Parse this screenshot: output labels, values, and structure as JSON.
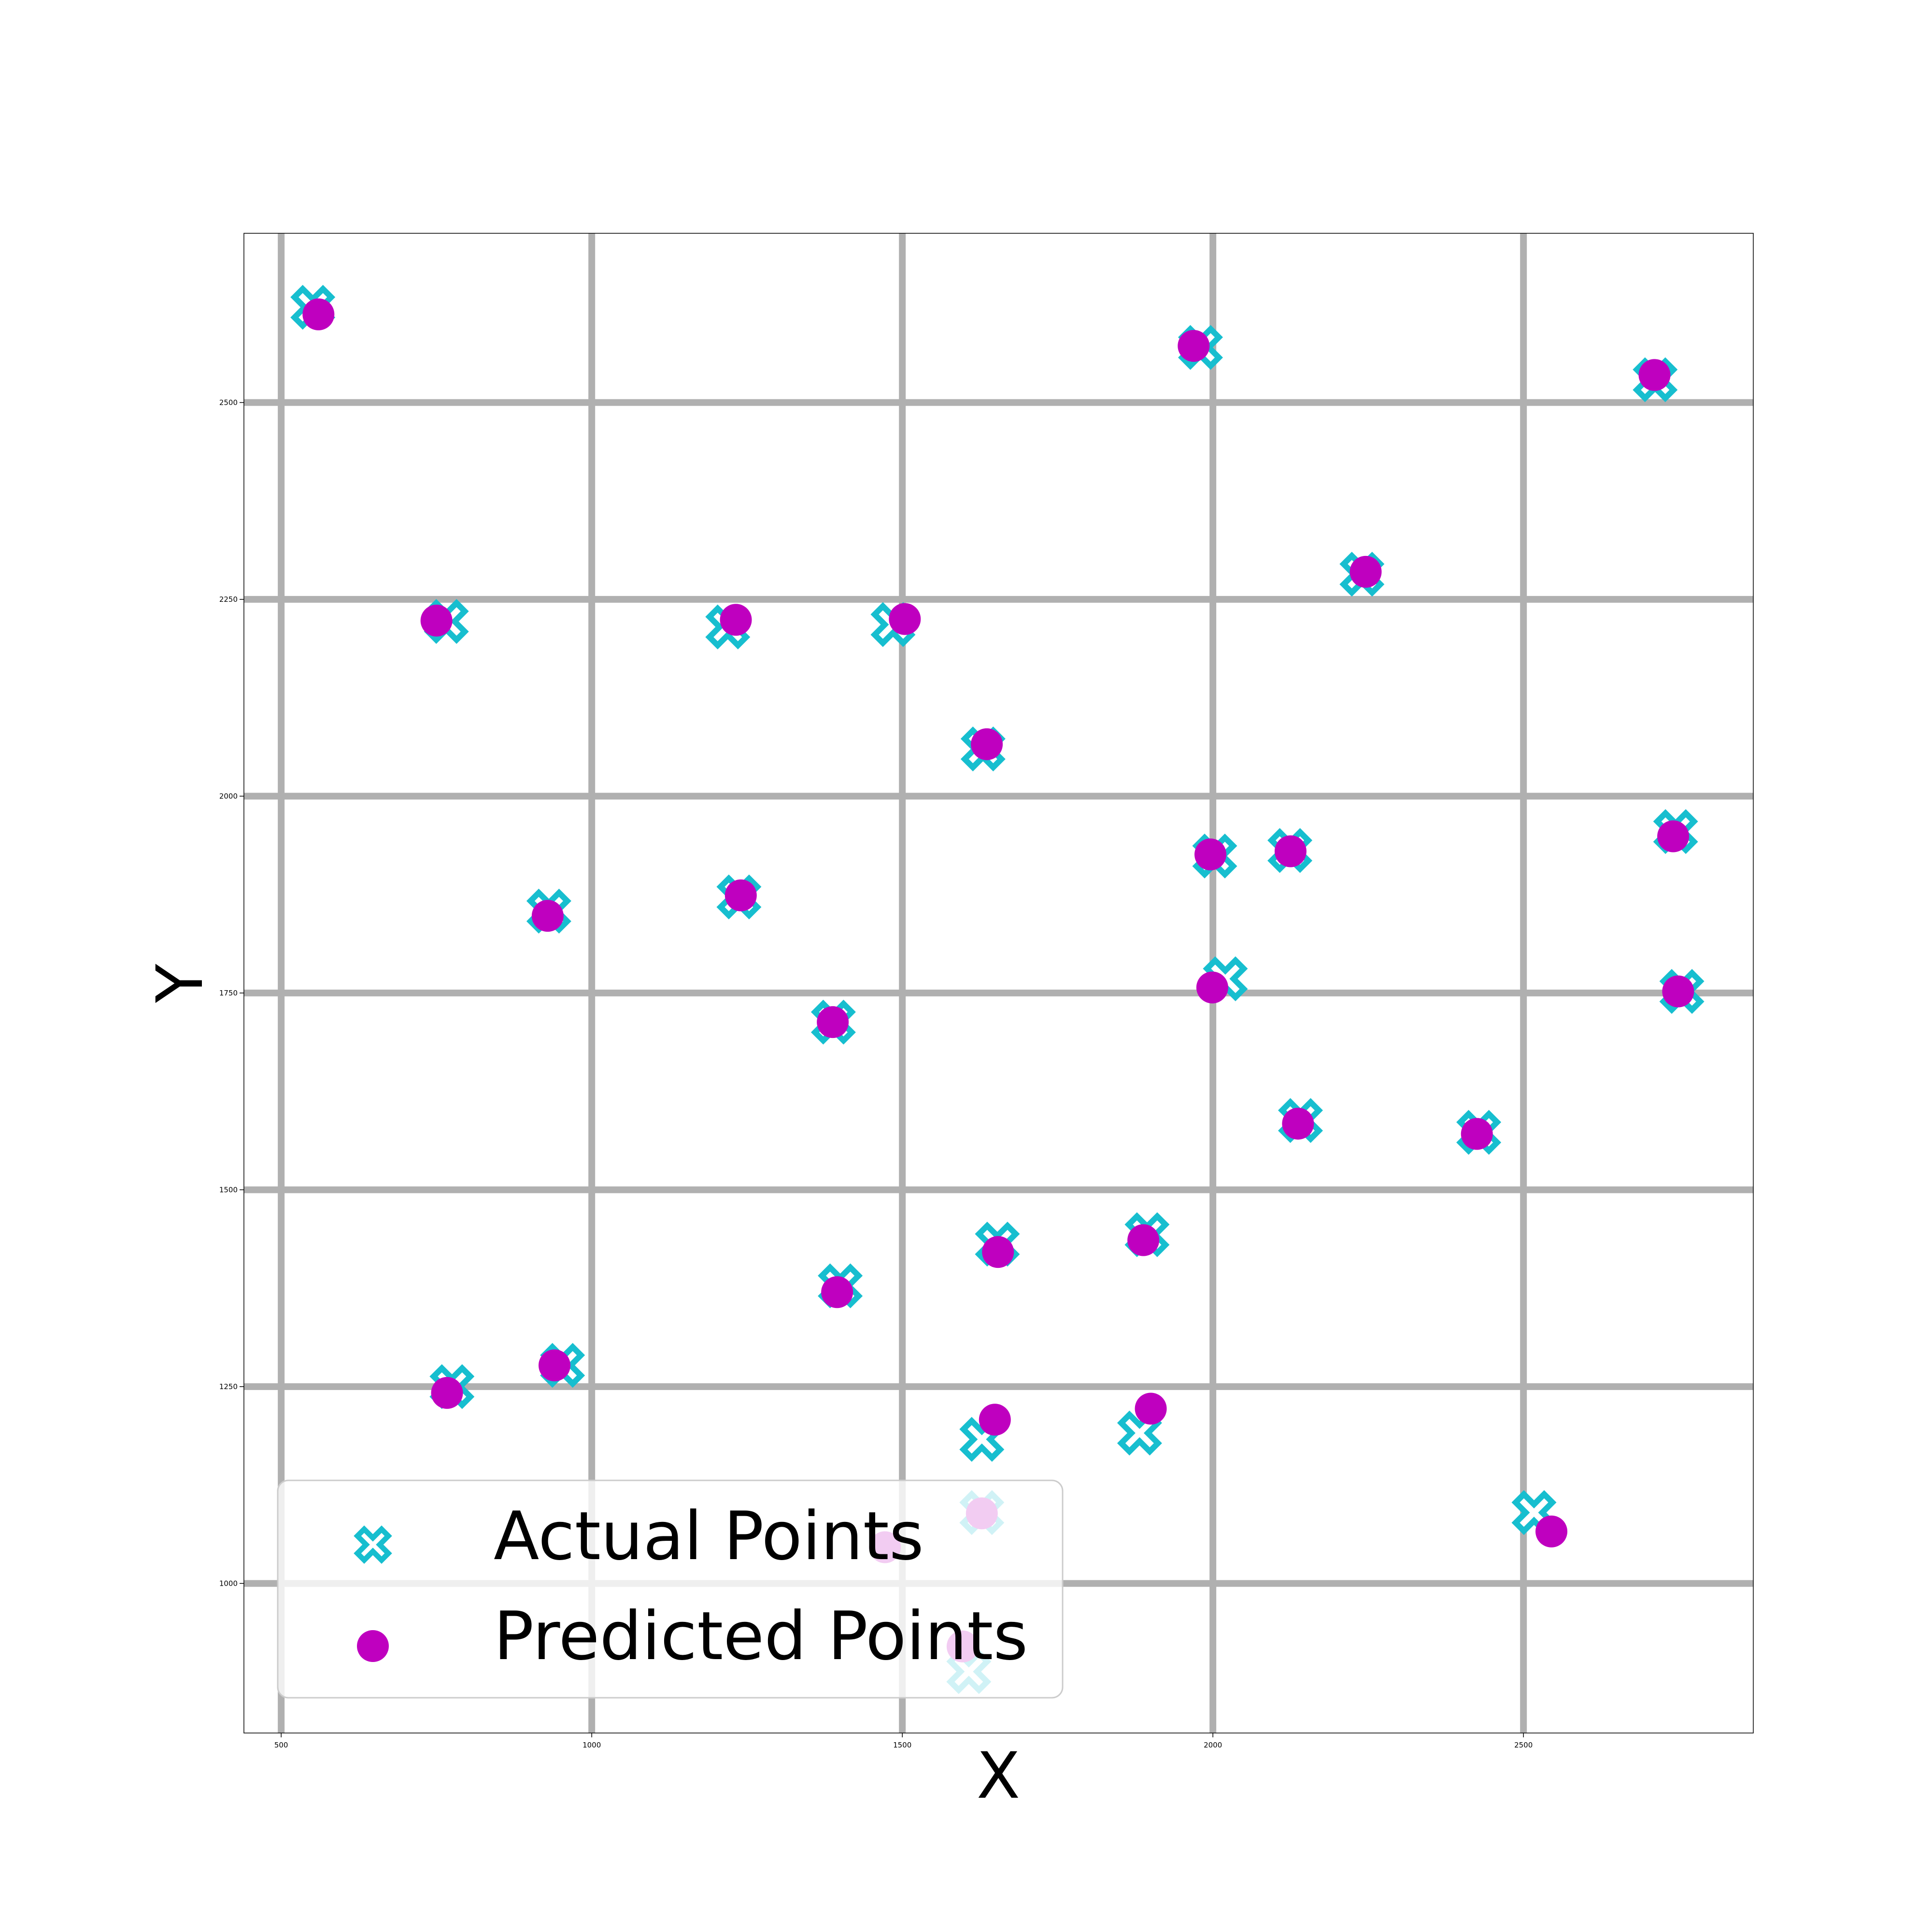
{
  "chart_data": {
    "type": "scatter",
    "title": "",
    "xlabel": "X",
    "ylabel": "Y",
    "xlim": [
      440,
      2870
    ],
    "ylim": [
      810,
      2715
    ],
    "xticks": [
      500,
      1000,
      1500,
      2000,
      2500
    ],
    "yticks": [
      1000,
      1250,
      1500,
      1750,
      2000,
      2250,
      2500
    ],
    "xtick_labels": [
      "500",
      "1000",
      "1500",
      "2000",
      "2500"
    ],
    "ytick_labels": [
      "1000",
      "1250",
      "1500",
      "1750",
      "2000",
      "2250",
      "2500"
    ],
    "grid": true,
    "legend_position": "lower-left",
    "colors": {
      "actual": "#17becf",
      "predicted": "#bf00bf",
      "grid": "#b0b0b0"
    },
    "series": [
      {
        "name": "Actual Points",
        "marker": "x-filled",
        "points": [
          [
            551,
            2621
          ],
          [
            766,
            2222
          ],
          [
            1219,
            2215
          ],
          [
            1485,
            2218
          ],
          [
            1630,
            2060
          ],
          [
            1980,
            2570
          ],
          [
            2240,
            2282
          ],
          [
            2712,
            2529
          ],
          [
            931,
            1854
          ],
          [
            1237,
            1872
          ],
          [
            1389,
            1713
          ],
          [
            2003,
            1924
          ],
          [
            2124,
            1931
          ],
          [
            2745,
            1955
          ],
          [
            2020,
            1768
          ],
          [
            2755,
            1752
          ],
          [
            2141,
            1588
          ],
          [
            2428,
            1573
          ],
          [
            1400,
            1378
          ],
          [
            1653,
            1431
          ],
          [
            1894,
            1443
          ],
          [
            775,
            1250
          ],
          [
            953,
            1277
          ],
          [
            1628,
            1183
          ],
          [
            1882,
            1191
          ],
          [
            1628,
            1090
          ],
          [
            2517,
            1090
          ],
          [
            1607,
            888
          ]
        ]
      },
      {
        "name": "Predicted Points",
        "marker": "circle",
        "points": [
          [
            560,
            2612
          ],
          [
            750,
            2223
          ],
          [
            1232,
            2224
          ],
          [
            1504,
            2225
          ],
          [
            1636,
            2066
          ],
          [
            1969,
            2572
          ],
          [
            2246,
            2285
          ],
          [
            2711,
            2535
          ],
          [
            929,
            1848
          ],
          [
            1240,
            1874
          ],
          [
            1388,
            1713
          ],
          [
            1996,
            1926
          ],
          [
            2125,
            1930
          ],
          [
            2741,
            1949
          ],
          [
            1999,
            1757
          ],
          [
            2749,
            1752
          ],
          [
            2137,
            1584
          ],
          [
            2425,
            1571
          ],
          [
            1395,
            1370
          ],
          [
            1654,
            1421
          ],
          [
            1888,
            1436
          ],
          [
            767,
            1242
          ],
          [
            940,
            1277
          ],
          [
            1649,
            1208
          ],
          [
            1900,
            1222
          ],
          [
            1628,
            1089
          ],
          [
            2545,
            1066
          ],
          [
            1472,
            1046
          ],
          [
            1597,
            920
          ]
        ]
      }
    ]
  }
}
